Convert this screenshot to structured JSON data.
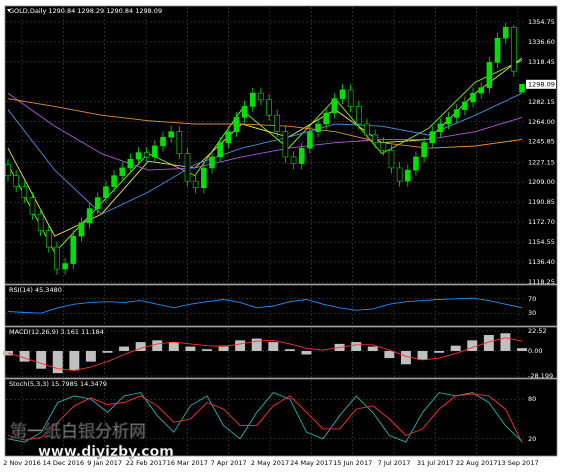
{
  "chart_data": [
    {
      "type": "candlestick",
      "title": "GOLD,Daily 1290.84 1298.29 1290.84 1298.09",
      "ylim": [
        1118.25,
        1354.75
      ],
      "yticks": [
        1354.75,
        {
          "value": 1336.6,
          "label": "1336.60"
        },
        1318.45,
        1282.15,
        {
          "value": 1264,
          "label": "1264.00"
        },
        1245.85,
        1227.15,
        {
          "value": 1209,
          "label": "1209.00"
        },
        1190.85,
        {
          "value": 1172.7,
          "label": "1172.70"
        },
        1154.55,
        {
          "value": 1136.4,
          "label": "1136.40"
        },
        1118.25
      ],
      "grid": true,
      "up_color": "#00e000",
      "down_color": "#000000",
      "date_labels": [
        "2 Nov 2016",
        "14 Dec 2016",
        "9 Jan 2017",
        "22 Feb 2017",
        "16 Mar 2017",
        "7 Apr 2017",
        "2 May 2017",
        "24 May 2017",
        "15 Jun 2017",
        "7 Jul 2017",
        "31 Jul 2017",
        "22 Aug 2017",
        "13 Sep 2017"
      ],
      "candles": {
        "open": [
          1225,
          1215,
          1205,
          1195,
          1180,
          1165,
          1150,
          1130,
          1135,
          1160,
          1172,
          1185,
          1195,
          1205,
          1215,
          1222,
          1230,
          1236,
          1232,
          1242,
          1250,
          1255,
          1235,
          1210,
          1204,
          1222,
          1232,
          1245,
          1255,
          1268,
          1278,
          1290,
          1284,
          1270,
          1255,
          1232,
          1226,
          1240,
          1255,
          1262,
          1272,
          1285,
          1293,
          1278,
          1262,
          1252,
          1245,
          1238,
          1222,
          1210,
          1220,
          1232,
          1245,
          1255,
          1262,
          1268,
          1275,
          1282,
          1290,
          1295,
          1318,
          1340,
          1350,
          1290.84
        ],
        "high": [
          1230,
          1220,
          1210,
          1200,
          1185,
          1170,
          1155,
          1140,
          1165,
          1177,
          1190,
          1200,
          1210,
          1220,
          1227,
          1235,
          1241,
          1241,
          1247,
          1255,
          1260,
          1260,
          1240,
          1215,
          1227,
          1237,
          1250,
          1260,
          1273,
          1283,
          1295,
          1295,
          1289,
          1275,
          1260,
          1237,
          1245,
          1260,
          1267,
          1277,
          1290,
          1298,
          1298,
          1283,
          1267,
          1257,
          1250,
          1243,
          1227,
          1225,
          1237,
          1250,
          1260,
          1267,
          1273,
          1280,
          1287,
          1295,
          1300,
          1323,
          1345,
          1354,
          1352,
          1298.29
        ],
        "low": [
          1210,
          1200,
          1190,
          1175,
          1160,
          1145,
          1125,
          1125,
          1130,
          1155,
          1167,
          1180,
          1190,
          1200,
          1210,
          1217,
          1225,
          1227,
          1227,
          1237,
          1245,
          1230,
          1205,
          1199,
          1199,
          1217,
          1227,
          1240,
          1250,
          1263,
          1273,
          1279,
          1265,
          1250,
          1227,
          1221,
          1221,
          1235,
          1250,
          1257,
          1267,
          1280,
          1273,
          1257,
          1247,
          1240,
          1233,
          1217,
          1205,
          1205,
          1215,
          1227,
          1240,
          1250,
          1257,
          1263,
          1270,
          1277,
          1285,
          1290,
          1313,
          1335,
          1305,
          1290.84
        ],
        "close": [
          1215,
          1205,
          1195,
          1180,
          1165,
          1150,
          1130,
          1135,
          1160,
          1172,
          1185,
          1195,
          1205,
          1215,
          1222,
          1230,
          1236,
          1232,
          1242,
          1250,
          1255,
          1235,
          1210,
          1204,
          1222,
          1232,
          1245,
          1255,
          1268,
          1278,
          1290,
          1284,
          1270,
          1255,
          1232,
          1226,
          1240,
          1255,
          1262,
          1272,
          1285,
          1293,
          1278,
          1262,
          1252,
          1245,
          1238,
          1222,
          1210,
          1220,
          1232,
          1245,
          1255,
          1262,
          1268,
          1275,
          1282,
          1290,
          1295,
          1318,
          1340,
          1350,
          1310,
          1298.09
        ]
      },
      "series": [
        {
          "color": "#7cfc00",
          "values": [
            1225,
            1145,
            1190,
            1235,
            1215,
            1275,
            1240,
            1285,
            1235,
            1258,
            1300,
            1320
          ]
        },
        {
          "color": "#e8e84a",
          "values": [
            1240,
            1160,
            1180,
            1228,
            1222,
            1262,
            1250,
            1275,
            1245,
            1248,
            1290,
            1322
          ]
        },
        {
          "color": "#4a90e2",
          "values": [
            1275,
            1220,
            1180,
            1200,
            1225,
            1240,
            1250,
            1262,
            1260,
            1252,
            1270,
            1290
          ]
        },
        {
          "color": "#b05ad8",
          "values": [
            1290,
            1260,
            1235,
            1220,
            1222,
            1232,
            1240,
            1245,
            1248,
            1248,
            1255,
            1268
          ]
        },
        {
          "color": "#e0903a",
          "values": [
            1285,
            1278,
            1270,
            1265,
            1262,
            1262,
            1260,
            1255,
            1245,
            1240,
            1242,
            1248
          ]
        }
      ]
    },
    {
      "type": "line",
      "title": "RSI(14) 45.3480",
      "ylim": [
        0,
        100
      ],
      "yticks": [
        70,
        30
      ],
      "grid": true,
      "series": [
        {
          "color": "#1e90ff",
          "values": [
            35,
            32,
            30,
            45,
            55,
            60,
            62,
            60,
            65,
            55,
            45,
            55,
            62,
            68,
            60,
            45,
            50,
            62,
            68,
            55,
            45,
            38,
            42,
            55,
            62,
            65,
            68,
            70,
            72,
            65,
            55,
            45.348
          ]
        }
      ]
    },
    {
      "type": "macd",
      "title": "MACD(12,26,9) 3.161 11.184",
      "ylim": [
        -28.199,
        22.52
      ],
      "yticks": [
        22.52,
        {
          "value": 0,
          "label": "0.00"
        },
        -28.199
      ],
      "grid": true,
      "bar_color": "#c0c0c0",
      "values": [
        -5,
        -12,
        -20,
        -25,
        -22,
        -12,
        -2,
        5,
        10,
        12,
        10,
        5,
        2,
        6,
        12,
        14,
        10,
        2,
        -4,
        0,
        8,
        10,
        5,
        -8,
        -15,
        -10,
        -2,
        6,
        12,
        18,
        20,
        3.161
      ],
      "series": [
        {
          "color": "#ff3030",
          "values": [
            -2,
            -8,
            -14,
            -20,
            -22,
            -18,
            -12,
            -4,
            3,
            8,
            10,
            8,
            6,
            5,
            8,
            11,
            12,
            8,
            3,
            1,
            4,
            7,
            7,
            1,
            -6,
            -10,
            -8,
            -3,
            4,
            10,
            15,
            11.184
          ]
        }
      ]
    },
    {
      "type": "line",
      "title": "Stoch(5,3,3) 15.7985 14.3479",
      "ylim": [
        0,
        100
      ],
      "yticks": [
        80,
        20
      ],
      "grid": true,
      "series": [
        {
          "color": "#20b2aa",
          "values": [
            20,
            15,
            30,
            75,
            85,
            80,
            60,
            85,
            90,
            55,
            30,
            70,
            85,
            40,
            20,
            60,
            90,
            80,
            30,
            20,
            55,
            85,
            60,
            25,
            15,
            60,
            90,
            85,
            90,
            75,
            40,
            15.7985
          ]
        },
        {
          "color": "#ff3030",
          "values": [
            25,
            18,
            22,
            45,
            70,
            82,
            72,
            75,
            85,
            70,
            45,
            50,
            75,
            65,
            40,
            40,
            70,
            85,
            60,
            35,
            35,
            65,
            70,
            50,
            25,
            35,
            65,
            85,
            88,
            85,
            65,
            14.3479
          ]
        }
      ]
    }
  ],
  "watermark": {
    "name": "第一纸白银分析网",
    "url": "www.diyizby.com"
  }
}
